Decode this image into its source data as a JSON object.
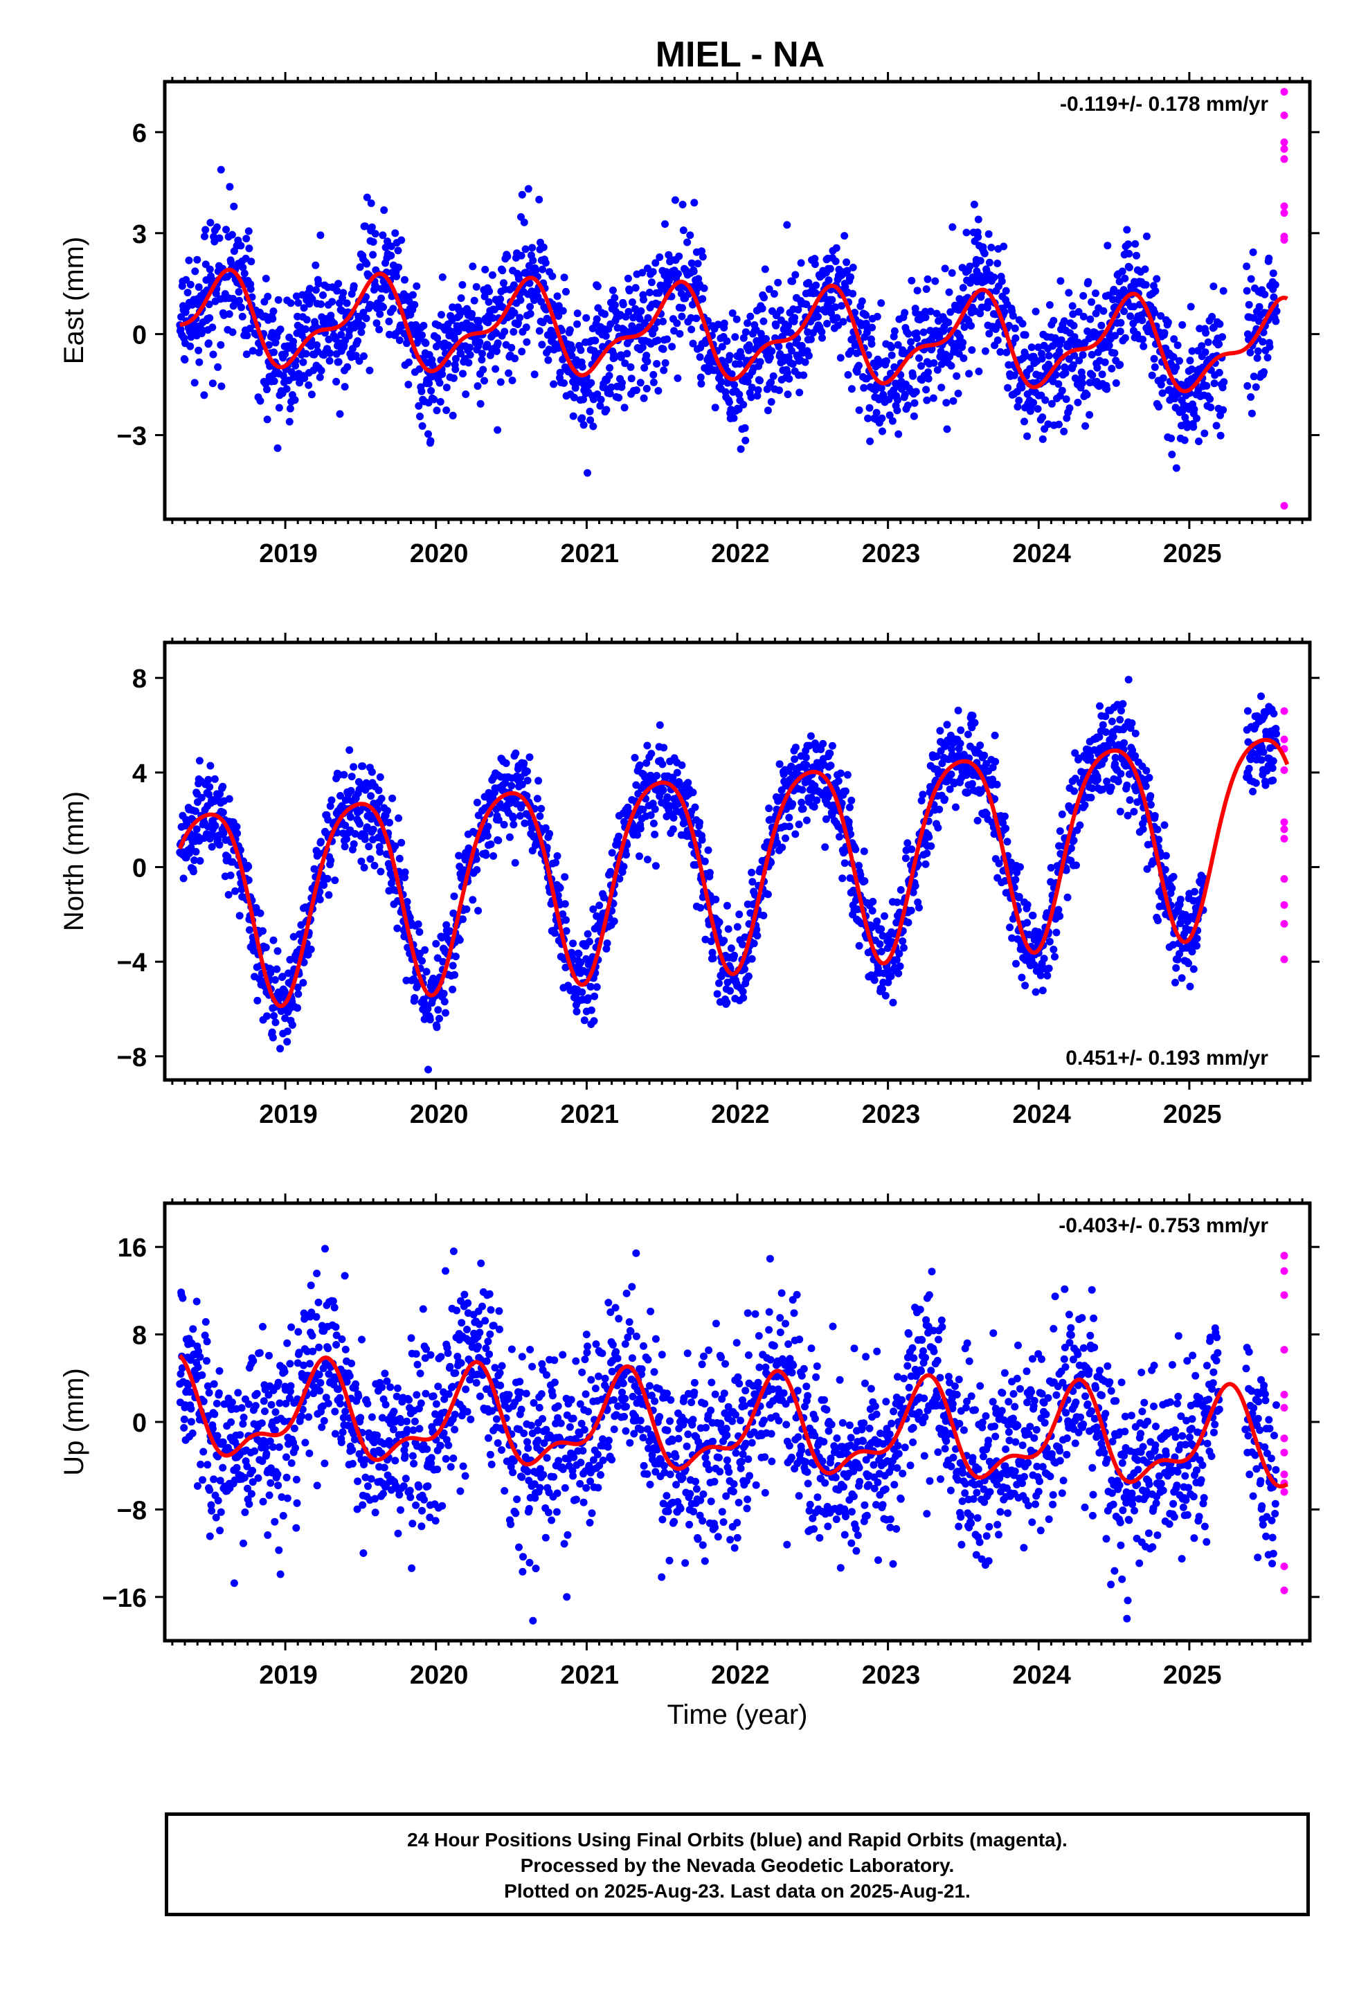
{
  "title": "MIEL - NA",
  "xlabel": "Time (year)",
  "colors": {
    "final": "#0000ff",
    "rapid": "#ff00ff",
    "fit": "#ff0000"
  },
  "caption": {
    "line1": "24 Hour Positions Using Final Orbits (blue) and Rapid Orbits (magenta).",
    "line2": "Processed by the Nevada Geodetic Laboratory.",
    "line3": "Plotted on 2025-Aug-23. Last data on 2025-Aug-21."
  },
  "chart_data": [
    {
      "type": "scatter",
      "name": "east",
      "ylabel": "East (mm)",
      "rate_label": "-0.119+/- 0.178 mm/yr",
      "rate_position": "top-right",
      "xlim": [
        2018.2,
        2025.8
      ],
      "ylim": [
        -5.5,
        7.5
      ],
      "xticks": [
        2019,
        2020,
        2021,
        2022,
        2023,
        2024,
        2025
      ],
      "yticks": [
        -3,
        0,
        3,
        6
      ],
      "grid": false,
      "fit": {
        "rate": -0.119,
        "offset": 0.0,
        "annual_cos": -1.05,
        "annual_sin": -0.45,
        "semi_cos": -0.25,
        "semi_sin": 0.45
      },
      "noise_sd": 0.95,
      "final_data": {
        "start": 2018.3,
        "end": 2025.58,
        "gap": [
          2025.23,
          2025.38
        ]
      },
      "rapid_data": {
        "x": 2025.63,
        "values": [
          7.2,
          6.5,
          5.7,
          5.5,
          5.2,
          3.8,
          3.6,
          2.9,
          2.8,
          -5.1
        ]
      },
      "fit_curve": {
        "start": 2018.3,
        "end": 2025.65
      }
    },
    {
      "type": "scatter",
      "name": "north",
      "ylabel": "North (mm)",
      "rate_label": "0.451+/- 0.193 mm/yr",
      "rate_position": "bottom-right",
      "xlim": [
        2018.2,
        2025.8
      ],
      "ylim": [
        -9,
        9.5
      ],
      "xticks": [
        2019,
        2020,
        2021,
        2022,
        2023,
        2024,
        2025
      ],
      "yticks": [
        -8,
        -4,
        0,
        4,
        8
      ],
      "grid": false,
      "fit": {
        "rate": 0.451,
        "offset": 0.3,
        "annual_cos": -4.1,
        "annual_sin": 0.6,
        "semi_cos": -0.6,
        "semi_sin": 0.3
      },
      "noise_sd": 1.0,
      "final_data": {
        "start": 2018.3,
        "end": 2025.58,
        "gap": [
          2025.1,
          2025.38
        ]
      },
      "rapid_data": {
        "x": 2025.63,
        "values": [
          6.6,
          5.4,
          5.0,
          4.1,
          1.9,
          1.6,
          1.2,
          -0.5,
          -1.6,
          -2.4,
          -3.9
        ]
      },
      "fit_curve": {
        "start": 2018.3,
        "end": 2025.65
      }
    },
    {
      "type": "scatter",
      "name": "up",
      "ylabel": "Up (mm)",
      "rate_label": "-0.403+/- 0.753 mm/yr",
      "rate_position": "top-right",
      "xlim": [
        2018.2,
        2025.8
      ],
      "ylim": [
        -20,
        20
      ],
      "xticks": [
        2019,
        2020,
        2021,
        2022,
        2023,
        2024,
        2025
      ],
      "yticks": [
        -16,
        -8,
        0,
        8,
        16
      ],
      "grid": false,
      "fit": {
        "rate": -0.403,
        "offset": -0.7,
        "annual_cos": 0.3,
        "annual_sin": 3.8,
        "semi_cos": -1.6,
        "semi_sin": -0.8
      },
      "noise_sd": 4.2,
      "final_data": {
        "start": 2018.3,
        "end": 2025.58,
        "gap": [
          2025.2,
          2025.37
        ]
      },
      "rapid_data": {
        "x": 2025.63,
        "values": [
          15.2,
          13.8,
          11.6,
          6.6,
          2.5,
          1.3,
          -1.5,
          -2.8,
          -4.8,
          -5.6,
          -6.4,
          -13.2,
          -15.4
        ]
      },
      "fit_curve": {
        "start": 2018.3,
        "end": 2025.65
      }
    }
  ]
}
